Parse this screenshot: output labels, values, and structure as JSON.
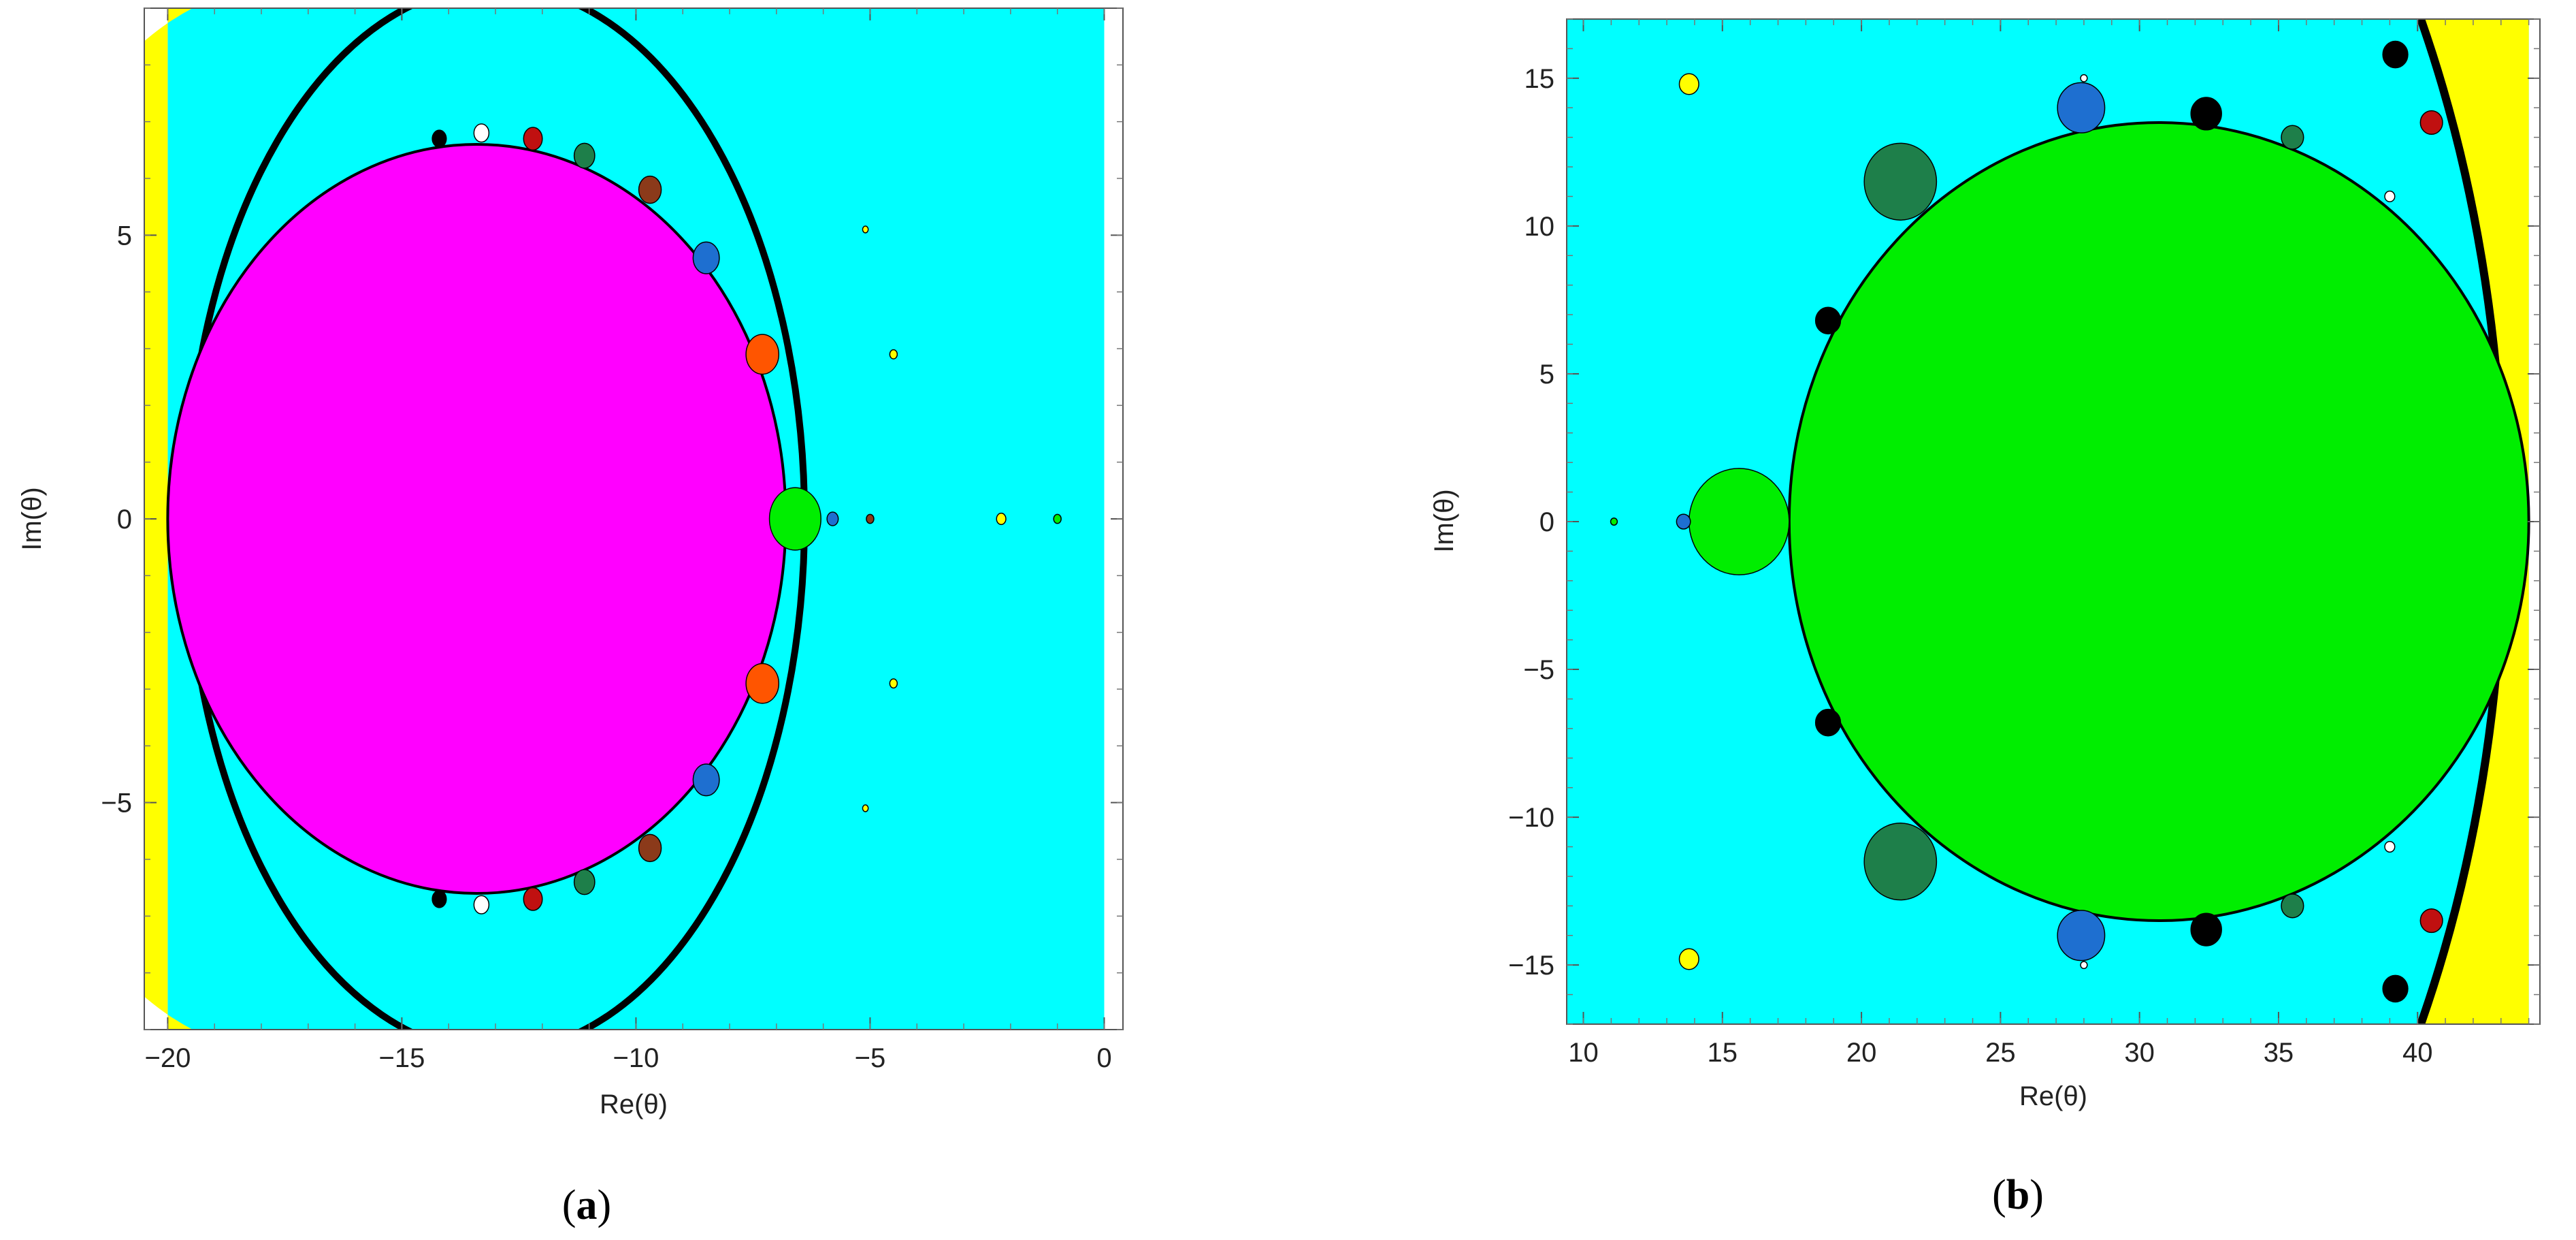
{
  "chart_data": [
    {
      "type": "scatter",
      "panel_label": "a",
      "xlabel": "Re(θ)",
      "ylabel": "Im(θ)",
      "xlim": [
        -20.5,
        0.4
      ],
      "ylim": [
        -9.0,
        9.0
      ],
      "xticks": [
        -20,
        -15,
        -10,
        -5,
        0
      ],
      "xtick_labels": [
        "−20",
        "−15",
        "−10",
        "−5",
        "0"
      ],
      "yticks": [
        -5,
        0,
        5
      ],
      "ytick_labels": [
        "−5",
        "0",
        "5"
      ],
      "grid": false,
      "colors": {
        "background": "#00ffff",
        "exterior": "#ffff00",
        "boundary": "#000000",
        "main_body": "#ff00ff"
      },
      "regions": {
        "exterior_left_edge": -20.0,
        "exterior_right_edge": 0.0,
        "boundary_arc": {
          "center": [
            -13.0,
            0
          ],
          "rx": 6.6,
          "ry": 9.4
        },
        "main_body": {
          "center": [
            -13.4,
            0
          ],
          "rx": 6.6,
          "ry": 6.6,
          "color": "#ff00ff"
        }
      },
      "bulbs": [
        {
          "x": -6.6,
          "y": 0,
          "r": 0.55,
          "color": "#00ee00"
        },
        {
          "x": -7.3,
          "y": 2.9,
          "r": 0.35,
          "color": "#ff5500"
        },
        {
          "x": -7.3,
          "y": -2.9,
          "r": 0.35,
          "color": "#ff5500"
        },
        {
          "x": -8.5,
          "y": 4.6,
          "r": 0.28,
          "color": "#1e6fd0"
        },
        {
          "x": -8.5,
          "y": -4.6,
          "r": 0.28,
          "color": "#1e6fd0"
        },
        {
          "x": -9.7,
          "y": 5.8,
          "r": 0.24,
          "color": "#8b3a1a"
        },
        {
          "x": -9.7,
          "y": -5.8,
          "r": 0.24,
          "color": "#8b3a1a"
        },
        {
          "x": -11.1,
          "y": 6.4,
          "r": 0.22,
          "color": "#1e7f4a"
        },
        {
          "x": -11.1,
          "y": -6.4,
          "r": 0.22,
          "color": "#1e7f4a"
        },
        {
          "x": -12.2,
          "y": 6.7,
          "r": 0.2,
          "color": "#c01010"
        },
        {
          "x": -12.2,
          "y": -6.7,
          "r": 0.2,
          "color": "#c01010"
        },
        {
          "x": -13.3,
          "y": 6.8,
          "r": 0.16,
          "color": "#ffffff"
        },
        {
          "x": -13.3,
          "y": -6.8,
          "r": 0.16,
          "color": "#ffffff"
        },
        {
          "x": -14.2,
          "y": 6.7,
          "r": 0.15,
          "color": "#000000"
        },
        {
          "x": -14.2,
          "y": -6.7,
          "r": 0.15,
          "color": "#000000"
        },
        {
          "x": -5.8,
          "y": 0,
          "r": 0.12,
          "color": "#1e6fd0"
        },
        {
          "x": -5.0,
          "y": 0,
          "r": 0.08,
          "color": "#8b3a1a"
        },
        {
          "x": -2.2,
          "y": 0,
          "r": 0.1,
          "color": "#ffff00"
        },
        {
          "x": -1.0,
          "y": 0,
          "r": 0.08,
          "color": "#00ee00"
        },
        {
          "x": -4.5,
          "y": 2.9,
          "r": 0.08,
          "color": "#ffff00"
        },
        {
          "x": -4.5,
          "y": -2.9,
          "r": 0.08,
          "color": "#ffff00"
        },
        {
          "x": -5.1,
          "y": 5.1,
          "r": 0.06,
          "color": "#ffff00"
        },
        {
          "x": -5.1,
          "y": -5.1,
          "r": 0.06,
          "color": "#ffff00"
        }
      ]
    },
    {
      "type": "scatter",
      "panel_label": "b",
      "xlabel": "Re(θ)",
      "ylabel": "Im(θ)",
      "xlim": [
        9.4,
        44.4
      ],
      "ylim": [
        -17.0,
        17.0
      ],
      "xticks": [
        10,
        15,
        20,
        25,
        30,
        35,
        40
      ],
      "xtick_labels": [
        "10",
        "15",
        "20",
        "25",
        "30",
        "35",
        "40"
      ],
      "yticks": [
        -15,
        -10,
        -5,
        0,
        5,
        10,
        15
      ],
      "ytick_labels": [
        "−15",
        "−10",
        "−5",
        "0",
        "5",
        "10",
        "15"
      ],
      "grid": false,
      "colors": {
        "background": "#00ffff",
        "exterior": "#ffff00",
        "boundary": "#000000",
        "main_body": "#00ee00"
      },
      "regions": {
        "exterior_left_edge": 10.0,
        "exterior_right_edge": 44.0,
        "boundary_arc": {
          "center": [
            19.0,
            0
          ],
          "rx": 25.0,
          "ry": 36.0
        },
        "main_body": {
          "center": [
            30.7,
            0
          ],
          "rx": 13.3,
          "ry": 13.5,
          "color": "#00ee00"
        }
      },
      "bulbs": [
        {
          "x": 15.6,
          "y": 0,
          "r": 1.8,
          "color": "#00ee00"
        },
        {
          "x": 21.4,
          "y": 11.5,
          "r": 1.3,
          "color": "#1e7f4a"
        },
        {
          "x": 21.4,
          "y": -11.5,
          "r": 1.3,
          "color": "#1e7f4a"
        },
        {
          "x": 27.9,
          "y": 14.0,
          "r": 0.85,
          "color": "#1e6fd0"
        },
        {
          "x": 27.9,
          "y": -14.0,
          "r": 0.85,
          "color": "#1e6fd0"
        },
        {
          "x": 32.4,
          "y": 13.8,
          "r": 0.55,
          "color": "#000000"
        },
        {
          "x": 32.4,
          "y": -13.8,
          "r": 0.55,
          "color": "#000000"
        },
        {
          "x": 35.5,
          "y": 13.0,
          "r": 0.4,
          "color": "#1e7f4a"
        },
        {
          "x": 35.5,
          "y": -13.0,
          "r": 0.4,
          "color": "#1e7f4a"
        },
        {
          "x": 18.8,
          "y": 6.8,
          "r": 0.45,
          "color": "#000000"
        },
        {
          "x": 18.8,
          "y": -6.8,
          "r": 0.45,
          "color": "#000000"
        },
        {
          "x": 39.2,
          "y": 15.8,
          "r": 0.45,
          "color": "#000000"
        },
        {
          "x": 39.2,
          "y": -15.8,
          "r": 0.45,
          "color": "#000000"
        },
        {
          "x": 40.5,
          "y": 13.5,
          "r": 0.4,
          "color": "#c01010"
        },
        {
          "x": 40.5,
          "y": -13.5,
          "r": 0.4,
          "color": "#c01010"
        },
        {
          "x": 13.6,
          "y": 0,
          "r": 0.25,
          "color": "#1e6fd0"
        },
        {
          "x": 11.1,
          "y": 0,
          "r": 0.12,
          "color": "#00ee00"
        },
        {
          "x": 13.8,
          "y": 14.8,
          "r": 0.35,
          "color": "#ffff00"
        },
        {
          "x": 13.8,
          "y": -14.8,
          "r": 0.35,
          "color": "#ffff00"
        },
        {
          "x": 39.0,
          "y": 11.0,
          "r": 0.18,
          "color": "#ffffff"
        },
        {
          "x": 39.0,
          "y": -11.0,
          "r": 0.18,
          "color": "#ffffff"
        },
        {
          "x": 28.0,
          "y": 15.0,
          "r": 0.12,
          "color": "#ffffff"
        },
        {
          "x": 28.0,
          "y": -15.0,
          "r": 0.12,
          "color": "#ffffff"
        }
      ]
    }
  ]
}
